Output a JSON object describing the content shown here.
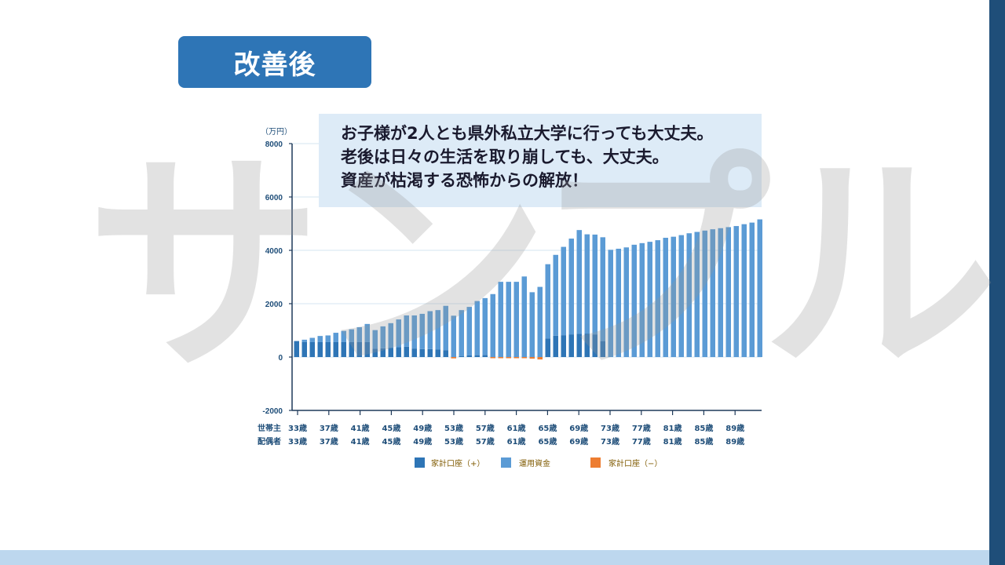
{
  "badge": {
    "label": "改善後"
  },
  "callout": {
    "line1": "お子様が2人とも県外私立大学に行っても大丈夫。",
    "line2": "老後は日々の生活を取り崩しても、大丈夫。",
    "line3": "資産が枯渇する恐怖からの解放！"
  },
  "watermark": "サンプル",
  "colors": {
    "accent": "#2e75b6",
    "dark": "#1f4e79",
    "light": "#bdd7ee",
    "callout_bg": "#ddebf7",
    "fund": "#5b9bd5",
    "household_plus": "#2e75b6",
    "household_minus": "#ed7d31"
  },
  "chart_data": {
    "type": "bar",
    "stacked": true,
    "ylabel": "（万円）",
    "ylim": [
      -2000,
      8000
    ],
    "yticks": [
      8000,
      6000,
      4000,
      2000,
      0,
      -2000
    ],
    "grid": true,
    "legend_position": "bottom",
    "row_labels": [
      "世帯主",
      "配偶者"
    ],
    "tick_labels_head": [
      "33歳",
      "37歳",
      "41歳",
      "45歳",
      "49歳",
      "53歳",
      "57歳",
      "61歳",
      "65歳",
      "69歳",
      "73歳",
      "77歳",
      "81歳",
      "85歳",
      "89歳"
    ],
    "tick_labels_spouse": [
      "33歳",
      "37歳",
      "41歳",
      "45歳",
      "49歳",
      "53歳",
      "57歳",
      "61歳",
      "65歳",
      "69歳",
      "73歳",
      "77歳",
      "81歳",
      "85歳",
      "89歳"
    ],
    "categories": [
      "33",
      "34",
      "35",
      "36",
      "37",
      "38",
      "39",
      "40",
      "41",
      "42",
      "43",
      "44",
      "45",
      "46",
      "47",
      "48",
      "49",
      "50",
      "51",
      "52",
      "53",
      "54",
      "55",
      "56",
      "57",
      "58",
      "59",
      "60",
      "61",
      "62",
      "63",
      "64",
      "65",
      "66",
      "67",
      "68",
      "69",
      "70",
      "71",
      "72",
      "73",
      "74",
      "75",
      "76",
      "77",
      "78",
      "79",
      "80",
      "81",
      "82",
      "83",
      "84",
      "85",
      "86",
      "87",
      "88",
      "89",
      "90",
      "91",
      "92"
    ],
    "series": [
      {
        "name": "家計口座（+）",
        "color": "#2e75b6",
        "values": [
          600,
          560,
          560,
          560,
          560,
          560,
          560,
          560,
          560,
          560,
          310,
          330,
          350,
          370,
          390,
          320,
          300,
          300,
          280,
          260,
          0,
          40,
          60,
          70,
          80,
          0,
          0,
          0,
          0,
          0,
          0,
          0,
          700,
          800,
          820,
          850,
          870,
          880,
          850,
          600,
          0,
          0,
          0,
          0,
          0,
          0,
          0,
          0,
          0,
          0,
          0,
          0,
          0,
          0,
          0,
          0,
          0,
          0,
          0,
          0
        ]
      },
      {
        "name": "運用資金",
        "color": "#5b9bd5",
        "values": [
          0,
          90,
          160,
          230,
          250,
          350,
          420,
          480,
          560,
          680,
          700,
          820,
          920,
          1040,
          1170,
          1240,
          1320,
          1420,
          1480,
          1660,
          1550,
          1720,
          1820,
          2030,
          2130,
          2360,
          2820,
          2820,
          2820,
          3020,
          2430,
          2630,
          2780,
          3030,
          3310,
          3590,
          3890,
          3720,
          3740,
          3890,
          4020,
          4060,
          4110,
          4210,
          4270,
          4320,
          4380,
          4470,
          4510,
          4570,
          4640,
          4690,
          4740,
          4790,
          4830,
          4870,
          4910,
          4980,
          5040,
          5160
        ]
      },
      {
        "name": "家計口座（−）",
        "color": "#ed7d31",
        "values": [
          0,
          0,
          0,
          0,
          0,
          0,
          0,
          0,
          0,
          0,
          0,
          0,
          0,
          0,
          0,
          0,
          0,
          0,
          0,
          0,
          -50,
          0,
          0,
          0,
          0,
          -40,
          -40,
          -40,
          -40,
          -40,
          -60,
          -90,
          0,
          0,
          0,
          0,
          0,
          0,
          0,
          0,
          0,
          0,
          0,
          0,
          0,
          0,
          0,
          0,
          0,
          0,
          0,
          0,
          0,
          0,
          0,
          0,
          0,
          0,
          0,
          0
        ]
      }
    ]
  }
}
